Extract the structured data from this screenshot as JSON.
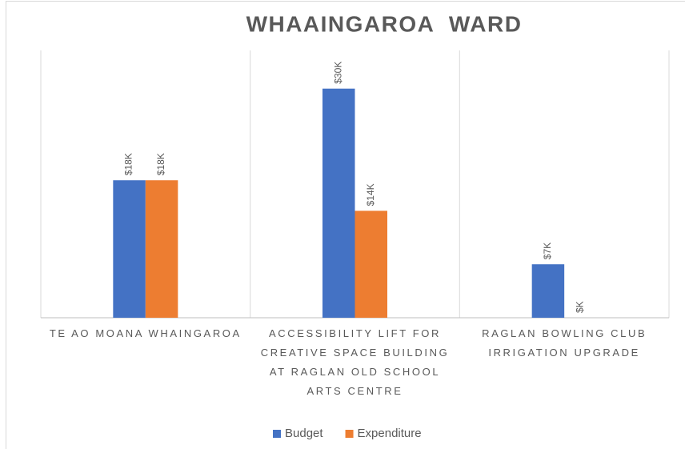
{
  "chart_data": {
    "type": "bar",
    "title": "WHAAINGAROA  WARD",
    "categories": [
      "TE AO MOANA WHAINGAROA",
      "ACCESSIBILITY LIFT FOR CREATIVE SPACE BUILDING AT RAGLAN OLD SCHOOL ARTS CENTRE",
      "RAGLAN BOWLING CLUB IRRIGATION UPGRADE"
    ],
    "series": [
      {
        "name": "Budget",
        "color": "#4472c4",
        "values": [
          18,
          30,
          7
        ],
        "value_labels": [
          "$18K",
          "$30K",
          "$7K"
        ]
      },
      {
        "name": "Expenditure",
        "color": "#ed7d31",
        "values": [
          18,
          14,
          0
        ],
        "value_labels": [
          "$18K",
          "$14K",
          "$K"
        ]
      }
    ],
    "ylim": [
      0,
      35
    ],
    "legend": "bottom"
  }
}
